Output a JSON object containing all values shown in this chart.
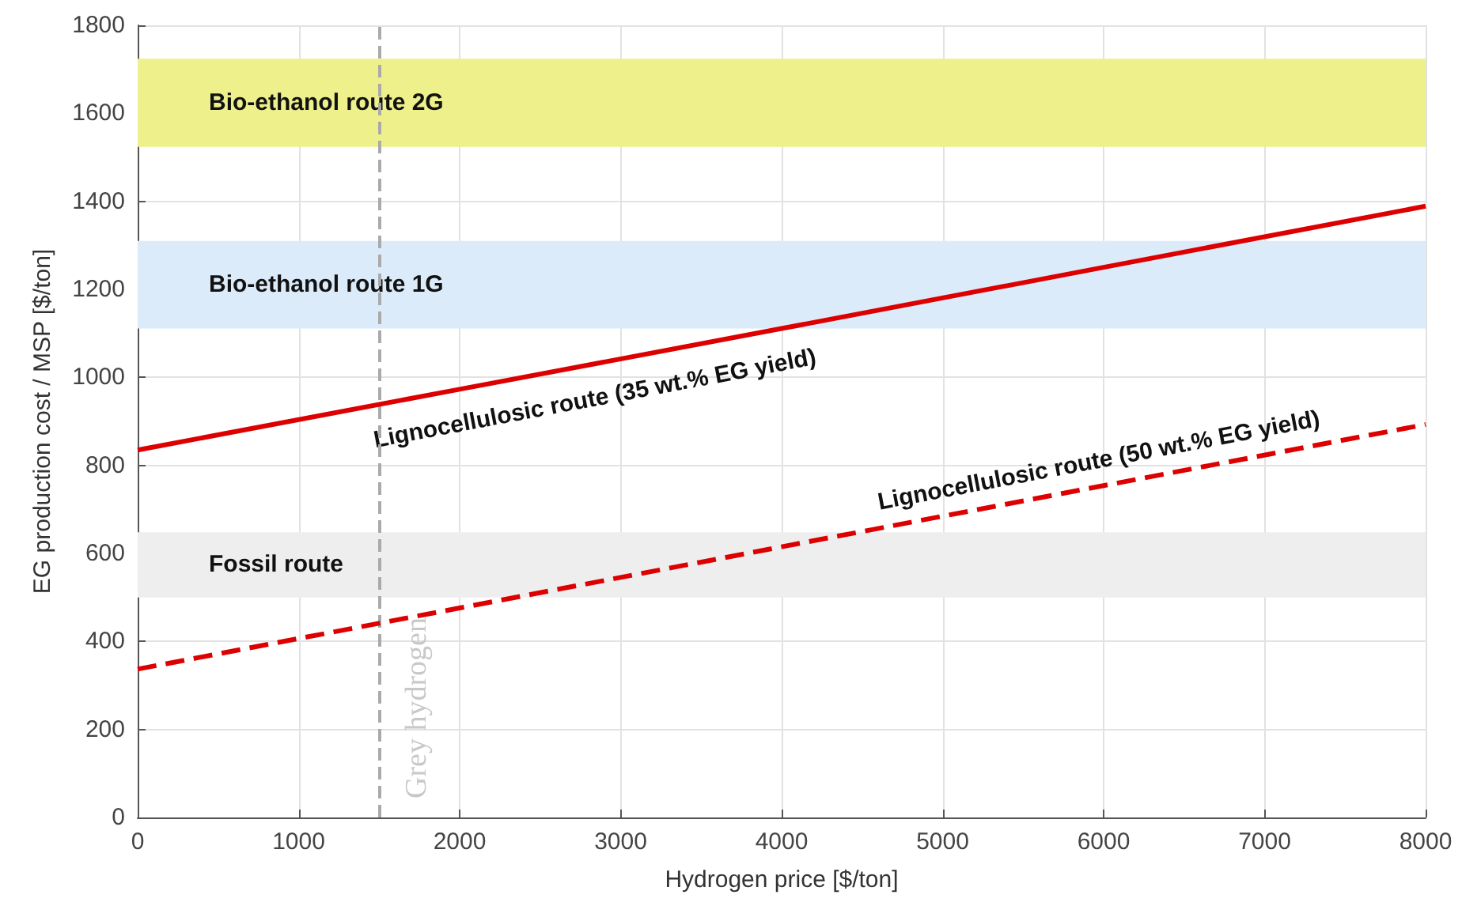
{
  "chart_data": {
    "type": "line",
    "xlabel": "Hydrogen price [$/ton]",
    "ylabel": "EG production cost / MSP [$/ton]",
    "xlim": [
      0,
      8000
    ],
    "xticks": [
      0,
      1000,
      2000,
      3000,
      4000,
      5000,
      6000,
      7000,
      8000
    ],
    "ylim": [
      0,
      1800
    ],
    "yticks": [
      0,
      200,
      400,
      600,
      800,
      1000,
      1200,
      1400,
      1600,
      1800
    ],
    "grid": true,
    "marker": "none",
    "series": [
      {
        "name": "Lignocellulosic route (35 wt.% EG yield)",
        "color": "#dd0000",
        "line_style": "solid",
        "x": [
          0,
          2000,
          4000,
          6000,
          8000
        ],
        "values": [
          835,
          973,
          1111,
          1250,
          1389
        ]
      },
      {
        "name": "Lignocellulosic route (50 wt.% EG yield)",
        "color": "#dd0000",
        "line_style": "dashed",
        "x": [
          0,
          2000,
          4000,
          6000,
          8000
        ],
        "values": [
          337,
          476,
          615,
          754,
          893
        ]
      }
    ],
    "bands": [
      {
        "axis": "y",
        "from": 1524,
        "to": 1724,
        "label": "Bio-ethanol route 2G",
        "color": "#eef08c"
      },
      {
        "axis": "y",
        "from": 1111,
        "to": 1310,
        "label": "Bio-ethanol route 1G",
        "color": "#dcebfa"
      },
      {
        "axis": "y",
        "from": 500,
        "to": 648,
        "label": "Fossil route",
        "color": "#eeeeee"
      }
    ],
    "ref_lines": [
      {
        "axis": "x",
        "value": 1500,
        "label": "Grey hydrogen",
        "color": "#aaaaaa",
        "line_style": "dashed"
      }
    ]
  }
}
